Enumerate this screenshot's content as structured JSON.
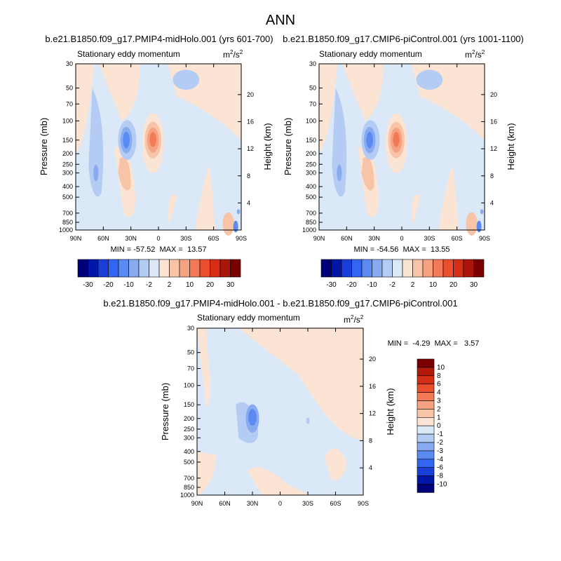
{
  "figure_title": "ANN",
  "chart_data": [
    {
      "type": "contour",
      "case_title": "b.e21.B1850.f09_g17.PMIP4-midHolo.001 (yrs 601-700)",
      "variable": "Stationary eddy momentum",
      "units_base": "m",
      "units_exp1": "2",
      "units_sep": "/s",
      "units_exp2": "2",
      "ylabel": "Pressure (mb)",
      "y2label": "Height (km)",
      "xticks": [
        "90N",
        "60N",
        "30N",
        "0",
        "30S",
        "60S",
        "90S"
      ],
      "yticks": [
        30,
        50,
        70,
        100,
        150,
        200,
        250,
        300,
        400,
        500,
        700,
        850,
        1000
      ],
      "ytick_labels": [
        "30",
        "50",
        "70",
        "100",
        "150",
        "200",
        "250",
        "300",
        "400",
        "500",
        "700",
        "850",
        "1000"
      ],
      "height_ticks": [
        20,
        16,
        12,
        8,
        4
      ],
      "height_tick_labels": [
        "20",
        "16",
        "12",
        "8",
        "4"
      ],
      "min": -57.52,
      "max": 13.57,
      "minmax_text": "MIN = -57.52  MAX =  13.57",
      "colorbar_labels": [
        "-30",
        "-20",
        "-10",
        "-2",
        "2",
        "10",
        "20",
        "30"
      ],
      "colorbar_colors": [
        "#000078",
        "#0016a8",
        "#1a3fd9",
        "#3366f0",
        "#5a8af2",
        "#88aaf0",
        "#b4ccf3",
        "#dbe8f7",
        "#fbe4d4",
        "#f8c4a8",
        "#f5a283",
        "#f27a57",
        "#ea4e2c",
        "#d42e16",
        "#aa160a",
        "#7a0000"
      ],
      "features": [
        {
          "lat": 6,
          "p": 148,
          "value": 13.57,
          "note": "positive maximum near 150 mb"
        },
        {
          "lat": 35,
          "p": 148,
          "value": -12,
          "note": "negative core"
        },
        {
          "lat": -82,
          "p": 950,
          "value": -57.52,
          "note": "near-surface minimum"
        }
      ]
    },
    {
      "type": "contour",
      "case_title": "b.e21.B1850.f09_g17.CMIP6-piControl.001 (yrs 1001-1100)",
      "variable": "Stationary eddy momentum",
      "units_base": "m",
      "units_exp1": "2",
      "units_sep": "/s",
      "units_exp2": "2",
      "ylabel": "Pressure (mb)",
      "y2label": "Height (km)",
      "xticks": [
        "90N",
        "60N",
        "30N",
        "0",
        "30S",
        "60S",
        "90S"
      ],
      "yticks": [
        30,
        50,
        70,
        100,
        150,
        200,
        250,
        300,
        400,
        500,
        700,
        850,
        1000
      ],
      "ytick_labels": [
        "30",
        "50",
        "70",
        "100",
        "150",
        "200",
        "250",
        "300",
        "400",
        "500",
        "700",
        "850",
        "1000"
      ],
      "height_ticks": [
        20,
        16,
        12,
        8,
        4
      ],
      "height_tick_labels": [
        "20",
        "16",
        "12",
        "8",
        "4"
      ],
      "min": -54.56,
      "max": 13.55,
      "minmax_text": "MIN = -54.56  MAX =  13.55",
      "colorbar_labels": [
        "-30",
        "-20",
        "-10",
        "-2",
        "2",
        "10",
        "20",
        "30"
      ],
      "colorbar_colors": [
        "#000078",
        "#0016a8",
        "#1a3fd9",
        "#3366f0",
        "#5a8af2",
        "#88aaf0",
        "#b4ccf3",
        "#dbe8f7",
        "#fbe4d4",
        "#f8c4a8",
        "#f5a283",
        "#f27a57",
        "#ea4e2c",
        "#d42e16",
        "#aa160a",
        "#7a0000"
      ],
      "features": [
        {
          "lat": 6,
          "p": 148,
          "value": 13.55,
          "note": "positive maximum near 150 mb"
        },
        {
          "lat": 34,
          "p": 148,
          "value": -12,
          "note": "negative core"
        },
        {
          "lat": -82,
          "p": 950,
          "value": -54.56,
          "note": "near-surface minimum"
        }
      ]
    },
    {
      "type": "contour",
      "case_title": "b.e21.B1850.f09_g17.PMIP4-midHolo.001 - b.e21.B1850.f09_g17.CMIP6-piControl.001",
      "variable": "Stationary eddy momentum",
      "units_base": "m",
      "units_exp1": "2",
      "units_sep": "/s",
      "units_exp2": "2",
      "ylabel": "Pressure (mb)",
      "y2label": "Height (km)",
      "xticks": [
        "90N",
        "60N",
        "30N",
        "0",
        "30S",
        "60S",
        "90S"
      ],
      "yticks": [
        30,
        50,
        70,
        100,
        150,
        200,
        250,
        300,
        400,
        500,
        700,
        850,
        1000
      ],
      "ytick_labels": [
        "30",
        "50",
        "70",
        "100",
        "150",
        "200",
        "250",
        "300",
        "400",
        "500",
        "700",
        "850",
        "1000"
      ],
      "height_ticks": [
        20,
        16,
        12,
        8,
        4
      ],
      "height_tick_labels": [
        "20",
        "16",
        "12",
        "8",
        "4"
      ],
      "min": -4.29,
      "max": 3.57,
      "minmax_text": "MIN =  -4.29  MAX =   3.57",
      "colorbar_labels": [
        "10",
        "8",
        "6",
        "4",
        "3",
        "2",
        "1",
        "0",
        "-1",
        "-2",
        "-3",
        "-4",
        "-6",
        "-8",
        "-10"
      ],
      "colorbar_colors": [
        "#7a0000",
        "#b01a0a",
        "#d42e16",
        "#ea4e2c",
        "#f27a57",
        "#f5a283",
        "#f8c4a8",
        "#fbe4d4",
        "#dbe8f7",
        "#b4ccf3",
        "#88aaf0",
        "#5a8af2",
        "#3366f0",
        "#1a3fd9",
        "#0016a8",
        "#000078"
      ],
      "features": [
        {
          "lat": 30,
          "p": 200,
          "value": -4.29,
          "note": "negative core"
        }
      ]
    }
  ]
}
